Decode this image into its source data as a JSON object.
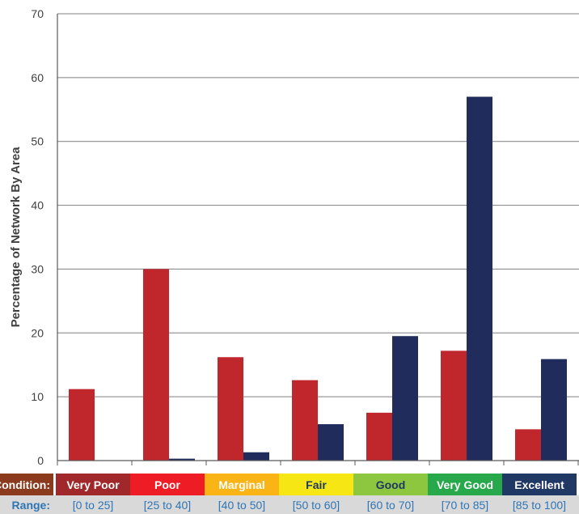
{
  "chart_data": {
    "type": "bar",
    "title": "",
    "xlabel": "",
    "ylabel": "Percentage of Network By Area",
    "ylim": [
      0,
      70
    ],
    "yticks": [
      0,
      10,
      20,
      30,
      40,
      50,
      60,
      70
    ],
    "grid": true,
    "legend": "none",
    "categories": [
      "Very Poor",
      "Poor",
      "Marginal",
      "Fair",
      "Good",
      "Very Good",
      "Excellent"
    ],
    "ranges": [
      "[0 to 25]",
      "[25 to 40]",
      "[40 to 50]",
      "[50 to 60]",
      "[60 to 70]",
      "[70 to 85]",
      "[85 to 100]"
    ],
    "row_labels": {
      "condition": "Condition:",
      "range": "Range:"
    },
    "category_colors": [
      "#a0282b",
      "#ee1c25",
      "#fbb416",
      "#f5e614",
      "#8dc63f",
      "#27a84a",
      "#1f3864"
    ],
    "category_text_colors": [
      "#ffffff",
      "#ffffff",
      "#ffffff",
      "#1f3864",
      "#1f3864",
      "#ffffff",
      "#ffffff"
    ],
    "condition_header_color": "#8b3a1e",
    "range_bg_color": "#d9d9d9",
    "series": [
      {
        "values": [
          11.2,
          30.0,
          16.2,
          12.6,
          7.5,
          17.2,
          4.9
        ],
        "color": "#c0272d"
      },
      {
        "values": [
          0,
          0.3,
          1.3,
          5.7,
          19.5,
          57.0,
          15.9
        ],
        "color": "#1f2c5c"
      }
    ]
  }
}
